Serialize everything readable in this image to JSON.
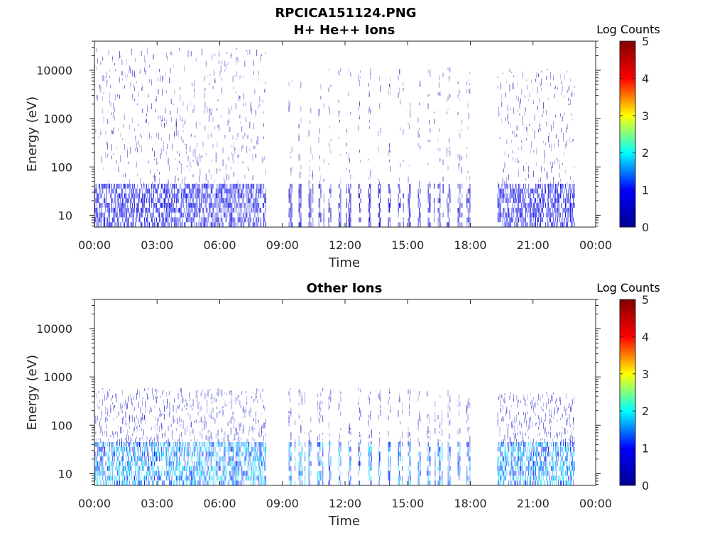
{
  "figure_title": "RPCICA151124.PNG",
  "colorbar_stops": [
    "#00008f",
    "#0000ff",
    "#00ffff",
    "#ffff00",
    "#ff0000",
    "#800000"
  ],
  "chart_data": [
    {
      "type": "heatmap",
      "title": "H+ He++ Ions",
      "xlabel": "Time",
      "ylabel": "Energy (eV)",
      "x_ticks": [
        "00:00",
        "03:00",
        "06:00",
        "09:00",
        "12:00",
        "15:00",
        "18:00",
        "21:00",
        "00:00"
      ],
      "xlim_hours": [
        0,
        24
      ],
      "y_scale": "log",
      "ylim": [
        5.7,
        40000
      ],
      "y_ticks": [
        10,
        100,
        1000,
        10000
      ],
      "y_tick_labels": [
        "10",
        "100",
        "1000",
        "10000"
      ],
      "colorbar": {
        "label": "Log Counts",
        "range": [
          0,
          5
        ],
        "ticks": [
          "0",
          "1",
          "2",
          "3",
          "4",
          "5"
        ]
      },
      "data_gaps_hours": [
        [
          8.2,
          9.2
        ],
        [
          18.1,
          19.3
        ]
      ],
      "segments": [
        {
          "start_h": 0.0,
          "end_h": 8.2,
          "low_energy_band_eV": [
            6,
            45
          ],
          "low_energy_level": 0.9,
          "high_energy_max_eV": 30000,
          "high_energy_level": 0.3,
          "mode": "continuous"
        },
        {
          "start_h": 9.3,
          "end_h": 18.0,
          "low_energy_band_eV": [
            6,
            45
          ],
          "low_energy_level": 0.6,
          "high_energy_max_eV": 12000,
          "high_energy_level": 0.25,
          "mode": "stripes"
        },
        {
          "start_h": 19.3,
          "end_h": 23.0,
          "low_energy_band_eV": [
            6,
            45
          ],
          "low_energy_level": 0.9,
          "high_energy_max_eV": 12000,
          "high_energy_level": 0.3,
          "mode": "continuous"
        }
      ]
    },
    {
      "type": "heatmap",
      "title": "Other Ions",
      "xlabel": "Time",
      "ylabel": "Energy (eV)",
      "x_ticks": [
        "00:00",
        "03:00",
        "06:00",
        "09:00",
        "12:00",
        "15:00",
        "18:00",
        "21:00",
        "00:00"
      ],
      "xlim_hours": [
        0,
        24
      ],
      "y_scale": "log",
      "ylim": [
        5.7,
        40000
      ],
      "y_ticks": [
        10,
        100,
        1000,
        10000
      ],
      "y_tick_labels": [
        "10",
        "100",
        "1000",
        "10000"
      ],
      "colorbar": {
        "label": "Log Counts",
        "range": [
          0,
          5
        ],
        "ticks": [
          "0",
          "1",
          "2",
          "3",
          "4",
          "5"
        ]
      },
      "data_gaps_hours": [
        [
          8.2,
          9.2
        ],
        [
          18.1,
          19.3
        ]
      ],
      "segments": [
        {
          "start_h": 0.0,
          "end_h": 8.2,
          "low_energy_band_eV": [
            6,
            45
          ],
          "low_energy_level": 1.7,
          "high_energy_max_eV": 600,
          "high_energy_level": 0.5,
          "mode": "continuous"
        },
        {
          "start_h": 9.3,
          "end_h": 18.0,
          "low_energy_band_eV": [
            6,
            45
          ],
          "low_energy_level": 1.6,
          "high_energy_max_eV": 600,
          "high_energy_level": 0.5,
          "mode": "stripes"
        },
        {
          "start_h": 19.3,
          "end_h": 23.0,
          "low_energy_band_eV": [
            6,
            45
          ],
          "low_energy_level": 1.7,
          "high_energy_max_eV": 500,
          "high_energy_level": 0.5,
          "mode": "continuous"
        }
      ]
    }
  ]
}
